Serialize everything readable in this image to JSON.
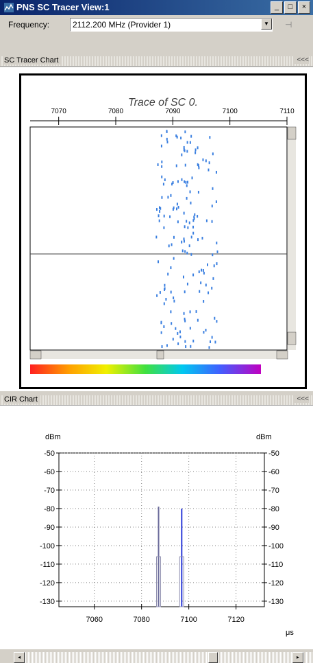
{
  "window": {
    "title": "PNS SC Tracer View:1",
    "minimize_label": "_",
    "maximize_label": "□",
    "close_label": "×"
  },
  "frequency": {
    "label": "Frequency:",
    "value": "2112.200 MHz (Provider 1)"
  },
  "tracer_section": {
    "header": "SC Tracer Chart",
    "collapse_label": "<<<"
  },
  "cir_section": {
    "header": "CIR Chart",
    "collapse_label": "<<<"
  },
  "colors": {
    "points": "#3a7fe0",
    "cir_line_a": "#6a6a9a",
    "cir_line_b": "#2b3ad8"
  },
  "chart_data": [
    {
      "type": "scatter",
      "title": "Trace of SC 0.",
      "xlim": [
        7065,
        7110
      ],
      "xticks": [
        7070,
        7080,
        7090,
        7100,
        7110
      ],
      "x_band": [
        7087,
        7098
      ],
      "colorbar": true
    },
    {
      "type": "line",
      "xlabel": "μs",
      "ylabel_left": "dBm",
      "ylabel_right": "dBm",
      "xlim": [
        7045,
        7132
      ],
      "ylim": [
        -133,
        -50
      ],
      "xticks": [
        7060,
        7080,
        7100,
        7120
      ],
      "yticks": [
        -50,
        -60,
        -70,
        -80,
        -90,
        -100,
        -110,
        -120,
        -130
      ],
      "grid": true,
      "series": [
        {
          "x": 7087.2,
          "top": -79
        },
        {
          "x": 7097.0,
          "top": -80
        }
      ]
    }
  ]
}
